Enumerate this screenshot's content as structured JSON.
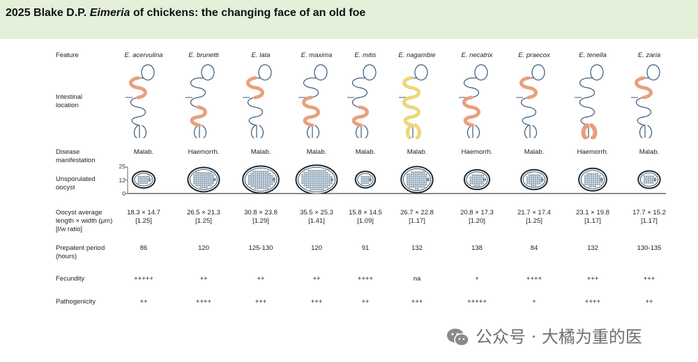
{
  "header": {
    "title_prefix": "2025 Blake D.P. ",
    "title_italic": "Eimeria",
    "title_suffix": " of chickens: the changing face of an old foe"
  },
  "row_labels": {
    "feature": "Feature",
    "intestinal_location": "Intestinal\nlocation",
    "disease_manifestation": "Disease\nmanifestation",
    "unsporulated_oocyst": "Unsporulated\noocyst",
    "oocyst_size": "Oocyst average\nlength × width (μm)\n[l/w ratio]",
    "prepatent_period": "Prepatent period\n(hours)",
    "fecundity": "Fecundity",
    "pathogenicity": "Pathogenicity"
  },
  "oocyst_axis_ticks": [
    "25",
    "12",
    "0"
  ],
  "colors": {
    "header_bg": "#e4f0da",
    "gut_outline": "#3b5a78",
    "highlight_orange": "#e8a07e",
    "highlight_yellow": "#ecd77a",
    "oocyst_fill": "#9fb6c8"
  },
  "species": [
    {
      "name": "E. acervulina",
      "disease": "Malab.",
      "size": "18.3 × 14.7",
      "ratio": "[1.25]",
      "prepatent": "86",
      "fecundity": "+++++",
      "pathogenicity": "++",
      "highlight": "upper",
      "highlight_color": "orange",
      "oocyst_length": 18.3,
      "oocyst_width": 14.7
    },
    {
      "name": "E. brunetti",
      "disease": "Haemorrh.",
      "size": "26.5 × 21.3",
      "ratio": "[1.25]",
      "prepatent": "120",
      "fecundity": "++",
      "pathogenicity": "++++",
      "highlight": "lower",
      "highlight_color": "orange",
      "oocyst_length": 26.5,
      "oocyst_width": 21.3
    },
    {
      "name": "E. lata",
      "disease": "Malab.",
      "size": "30.8 × 23.8",
      "ratio": "[1.29]",
      "prepatent": "125-130",
      "fecundity": "++",
      "pathogenicity": "+++",
      "highlight": "upper",
      "highlight_color": "orange",
      "oocyst_length": 30.8,
      "oocyst_width": 23.8
    },
    {
      "name": "E. maxima",
      "disease": "Malab.",
      "size": "35.5 × 25.3",
      "ratio": "[1.41]",
      "prepatent": "120",
      "fecundity": "++",
      "pathogenicity": "+++",
      "highlight": "middle",
      "highlight_color": "orange",
      "oocyst_length": 35.5,
      "oocyst_width": 25.3
    },
    {
      "name": "E. mitis",
      "disease": "Malab.",
      "size": "15.8 × 14.5",
      "ratio": "[1.09]",
      "prepatent": "91",
      "fecundity": "++++",
      "pathogenicity": "++",
      "highlight": "lower",
      "highlight_color": "orange",
      "oocyst_length": 15.8,
      "oocyst_width": 14.5
    },
    {
      "name": "E. nagambie",
      "disease": "Malab.",
      "size": "26.7 × 22.8",
      "ratio": "[1.17]",
      "prepatent": "132",
      "fecundity": "na",
      "pathogenicity": "+++",
      "highlight": "whole",
      "highlight_color": "yellow",
      "oocyst_length": 26.7,
      "oocyst_width": 22.8
    },
    {
      "name": "E. necatrix",
      "disease": "Haemorrh.",
      "size": "20.8 × 17.3",
      "ratio": "[1.20]",
      "prepatent": "138",
      "fecundity": "+",
      "pathogenicity": "+++++",
      "highlight": "middle",
      "highlight_color": "orange",
      "oocyst_length": 20.8,
      "oocyst_width": 17.3
    },
    {
      "name": "E. praecox",
      "disease": "Malab.",
      "size": "21.7 × 17.4",
      "ratio": "[1.25]",
      "prepatent": "84",
      "fecundity": "++++",
      "pathogenicity": "+",
      "highlight": "upper",
      "highlight_color": "orange",
      "oocyst_length": 21.7,
      "oocyst_width": 17.4
    },
    {
      "name": "E. tenella",
      "disease": "Haemorrh.",
      "size": "23.1 × 19.8",
      "ratio": "[1.17]",
      "prepatent": "132",
      "fecundity": "+++",
      "pathogenicity": "++++",
      "highlight": "ceca",
      "highlight_color": "orange",
      "oocyst_length": 23.1,
      "oocyst_width": 19.8
    },
    {
      "name": "E. zaria",
      "disease": "Malab.",
      "size": "17.7 × 15.2",
      "ratio": "[1.17]",
      "prepatent": "130-135",
      "fecundity": "+++",
      "pathogenicity": "++",
      "highlight": "upper",
      "highlight_color": "orange",
      "oocyst_length": 17.7,
      "oocyst_width": 15.2
    }
  ],
  "watermark": "公众号 · 大橘为重的医"
}
